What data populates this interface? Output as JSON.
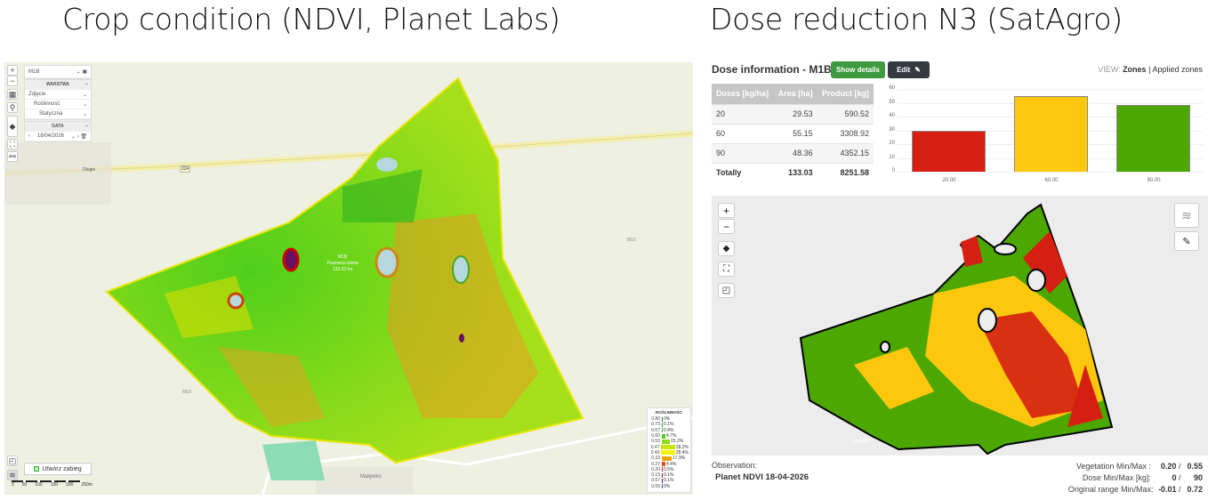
{
  "headings": {
    "left": "Crop condition (NDVI, Planet Labs)",
    "right": "Dose reduction N3 (SatAgro)"
  },
  "left_map": {
    "field_select": "M1B",
    "layer_section": "WARSTWA",
    "layer_options": [
      "Zdjęcie",
      "Roślinność",
      "Statyczna"
    ],
    "date_section": "DATA",
    "date_value": "18/04/2026",
    "road_label": "224",
    "village_label": "Długie",
    "field_label": {
      "name": "M1B",
      "desc": "Pszenica ozima",
      "area": "133.03 ha"
    },
    "neighbor_labels": [
      "M10",
      "M10"
    ],
    "bottom_village": "Małęwko",
    "create_button": "Utwórz zabieg",
    "scale_ticks": [
      "0",
      "50",
      "100",
      "150",
      "200",
      "250m"
    ],
    "legend": {
      "title": "ROŚLINNOŚĆ",
      "rows": [
        {
          "value": "0.80",
          "pct": "0%",
          "color": "#1a7a1a",
          "w": 1
        },
        {
          "value": "0.73",
          "pct": "0.1%",
          "color": "#2a9a2a",
          "w": 1
        },
        {
          "value": "0.67",
          "pct": "0.4%",
          "color": "#3cb33c",
          "w": 1
        },
        {
          "value": "0.60",
          "pct": "4.7%",
          "color": "#4fcc20",
          "w": 4
        },
        {
          "value": "0.53",
          "pct": "15.2%",
          "color": "#8fdc10",
          "w": 9
        },
        {
          "value": "0.47",
          "pct": "28.2%",
          "color": "#c4ea00",
          "w": 16
        },
        {
          "value": "0.40",
          "pct": "28.4%",
          "color": "#f5f500",
          "w": 16
        },
        {
          "value": "0.33",
          "pct": "17.9%",
          "color": "#f5a300",
          "w": 11
        },
        {
          "value": "0.27",
          "pct": "4.4%",
          "color": "#e0501a",
          "w": 4
        },
        {
          "value": "0.20",
          "pct": "0.5%",
          "color": "#c8201a",
          "w": 1
        },
        {
          "value": "0.13",
          "pct": "0.1%",
          "color": "#a01010",
          "w": 1
        },
        {
          "value": "0.07",
          "pct": "0.1%",
          "color": "#6a1060",
          "w": 1
        },
        {
          "value": "0.00",
          "pct": "0%",
          "color": "#3050c0",
          "w": 1
        }
      ]
    }
  },
  "dose_panel": {
    "title": "Dose information - M1B",
    "show_details": "Show details",
    "edit": "Edit",
    "view_label": "VIEW:",
    "view_active": "Zones",
    "view_separator": "|",
    "view_other": "Applied zones",
    "table": {
      "headers": [
        "Doses [kg/ha]",
        "Area [ha]",
        "Product [kg]"
      ],
      "rows": [
        [
          "20",
          "29.53",
          "590.52"
        ],
        [
          "60",
          "55.15",
          "3308.92"
        ],
        [
          "90",
          "48.36",
          "4352.15"
        ]
      ],
      "total": [
        "Totally",
        "133.03",
        "8251.58"
      ]
    },
    "map": {
      "attribution": "Leaflet"
    },
    "observation_label": "Observation:",
    "observation_value": "Planet NDVI 18-04-2026",
    "stats": [
      {
        "label": "Vegetation Min/Max :",
        "min": "0.20",
        "sep": "/",
        "max": "0.55"
      },
      {
        "label": "Dose Min/Max [kg]:",
        "min": "0",
        "sep": "/",
        "max": "90"
      },
      {
        "label": "Original range Min/Max:",
        "min": "-0.01",
        "sep": "/",
        "max": "0.72"
      }
    ]
  },
  "chart_data": {
    "type": "bar",
    "title": "",
    "categories": [
      "20.00",
      "60.00",
      "90.00"
    ],
    "values": [
      29.53,
      55.15,
      48.36
    ],
    "colors": [
      "#d61f13",
      "#fdc70e",
      "#4ca700"
    ],
    "xlabel": "",
    "ylabel": "",
    "yticks": [
      "0",
      "10",
      "20",
      "30",
      "40",
      "50",
      "60"
    ],
    "ylim": [
      0,
      60
    ],
    "grid": true
  }
}
